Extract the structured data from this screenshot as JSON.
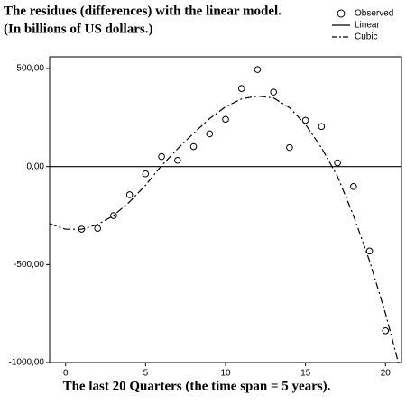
{
  "chart_data": {
    "type": "scatter",
    "title": "The residues (differences) with the linear model.",
    "subtitle": "(In billions of US dollars.)",
    "x_label": "The last 20 Quarters (the time span = 5 years).",
    "xlim": [
      -1,
      21
    ],
    "xticks": [
      0,
      5,
      10,
      15,
      20
    ],
    "ylim": [
      -1000,
      560
    ],
    "yticks": [
      {
        "value": 500,
        "label": "500,00"
      },
      {
        "value": 0,
        "label": "0,00"
      },
      {
        "value": -500,
        "label": "-500,00"
      },
      {
        "value": -1000,
        "label": "-1000,00"
      }
    ],
    "series": [
      {
        "name": "Observed",
        "color": "#000000",
        "style": "markers",
        "x": [
          1,
          2,
          3,
          4,
          5,
          6,
          7,
          8,
          9,
          10,
          11,
          12,
          13,
          14,
          15,
          16,
          17,
          18,
          19,
          20
        ],
        "values": [
          -319,
          -315,
          -250,
          -144,
          -37,
          51,
          32,
          102,
          167,
          241,
          398,
          495,
          380,
          97,
          236,
          204,
          19,
          -102,
          -431,
          -838
        ]
      },
      {
        "name": "Linear",
        "color": "#000000",
        "style": "solid",
        "x": [
          -1,
          21
        ],
        "values": [
          0,
          0
        ]
      },
      {
        "name": "Cubic",
        "color": "#000000",
        "style": "dash-dot",
        "x": [
          -1,
          0,
          1,
          2,
          3,
          4,
          5,
          6,
          7,
          8,
          9,
          10,
          11,
          12,
          13,
          14,
          15,
          16,
          17,
          18,
          19,
          20,
          20.8
        ],
        "values": [
          -292,
          -320,
          -320,
          -296,
          -250,
          -180,
          -95,
          5,
          90,
          170,
          245,
          305,
          345,
          360,
          350,
          300,
          215,
          95,
          -50,
          -250,
          -480,
          -750,
          -1000
        ]
      }
    ]
  }
}
